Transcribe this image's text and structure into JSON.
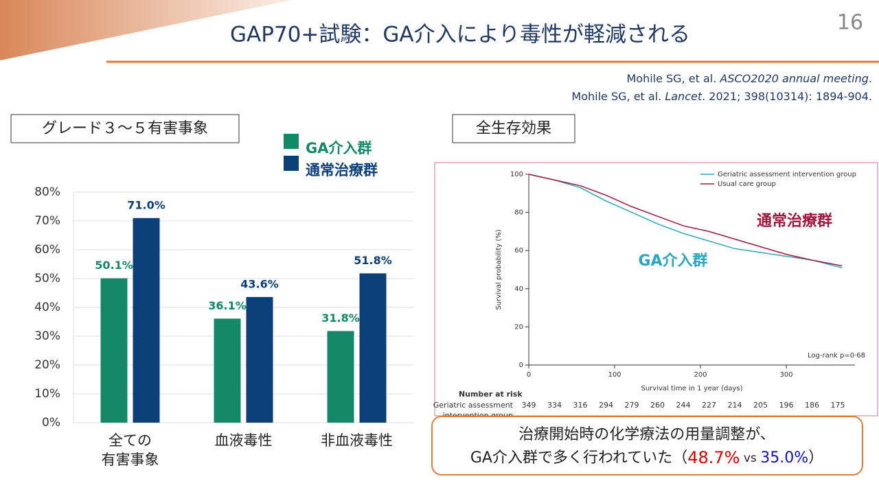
{
  "header": {
    "title": "GAP70+試験：GA介入により毒性が軽減される",
    "page_number": "16"
  },
  "references": [
    [
      "Mohile SG, et al. ",
      "ASCO2020 annual meeting",
      "."
    ],
    [
      "Mohile SG, et al. ",
      "Lancet",
      ". 2021; 398(10314): 1894-904."
    ]
  ],
  "section_labels": [
    "グレード３～５有害事象",
    "全生存効果"
  ],
  "chart_data": [
    {
      "type": "bar",
      "categories": [
        "全ての\n有害事象",
        "血液毒性",
        "非血液毒性"
      ],
      "series": [
        {
          "name": "GA介入群",
          "color": "#13896a",
          "values": [
            50.1,
            36.1,
            31.8
          ],
          "value_labels": [
            "50.1%",
            "36.1%",
            "31.8%"
          ]
        },
        {
          "name": "通常治療群",
          "color": "#0b3f79",
          "values": [
            71.0,
            43.6,
            51.8
          ],
          "value_labels": [
            "71.0%",
            "43.6%",
            "51.8%"
          ]
        }
      ],
      "ylim": [
        0,
        80
      ],
      "yticks": [
        {
          "value": 0,
          "label": "0%"
        },
        {
          "value": 10,
          "label": "10%"
        },
        {
          "value": 20,
          "label": "20%"
        },
        {
          "value": 30,
          "label": "30%"
        },
        {
          "value": 40,
          "label": "40%"
        },
        {
          "value": 50,
          "label": "50%"
        },
        {
          "value": 60,
          "label": "60%"
        },
        {
          "value": 70,
          "label": "70%"
        },
        {
          "value": 80,
          "label": "80%"
        }
      ],
      "grid": true
    },
    {
      "type": "line",
      "x": [
        0,
        30,
        60,
        90,
        120,
        150,
        180,
        210,
        240,
        270,
        300,
        330,
        365
      ],
      "series": [
        {
          "name": "Geriatric assessment intervention group",
          "color": "#2aa6c0",
          "values": [
            100,
            97,
            93,
            86,
            80,
            74,
            69,
            65,
            61,
            59,
            57,
            55,
            51
          ]
        },
        {
          "name": "Usual care group",
          "color": "#a0163e",
          "values": [
            100,
            97,
            94,
            89,
            83,
            78,
            73,
            70,
            66,
            62,
            58,
            55,
            52
          ]
        }
      ],
      "xlim": [
        0,
        380
      ],
      "xticks": [
        0,
        100,
        200,
        300
      ],
      "ylim": [
        0,
        100
      ],
      "yticks": [
        0,
        20,
        40,
        60,
        80,
        100
      ],
      "xlabel": "Survival time in 1 year (days)",
      "ylabel": "Survival probability (%)",
      "annotations": [
        "通常治療群",
        "GA介入群",
        "Log-rank p=0·68"
      ],
      "at_risk": {
        "title": "Number at risk",
        "label": [
          "Geriatric assessment",
          "intervention group"
        ],
        "values": [
          349,
          334,
          316,
          294,
          279,
          260,
          244,
          227,
          214,
          205,
          196,
          186,
          175
        ]
      }
    }
  ],
  "conclusion": {
    "line1": "治療開始時の化学療法の用量調整が、",
    "line2": [
      "GA介入群で多く行われていた（",
      "48.7%",
      " vs ",
      "35.0%",
      "）"
    ]
  }
}
